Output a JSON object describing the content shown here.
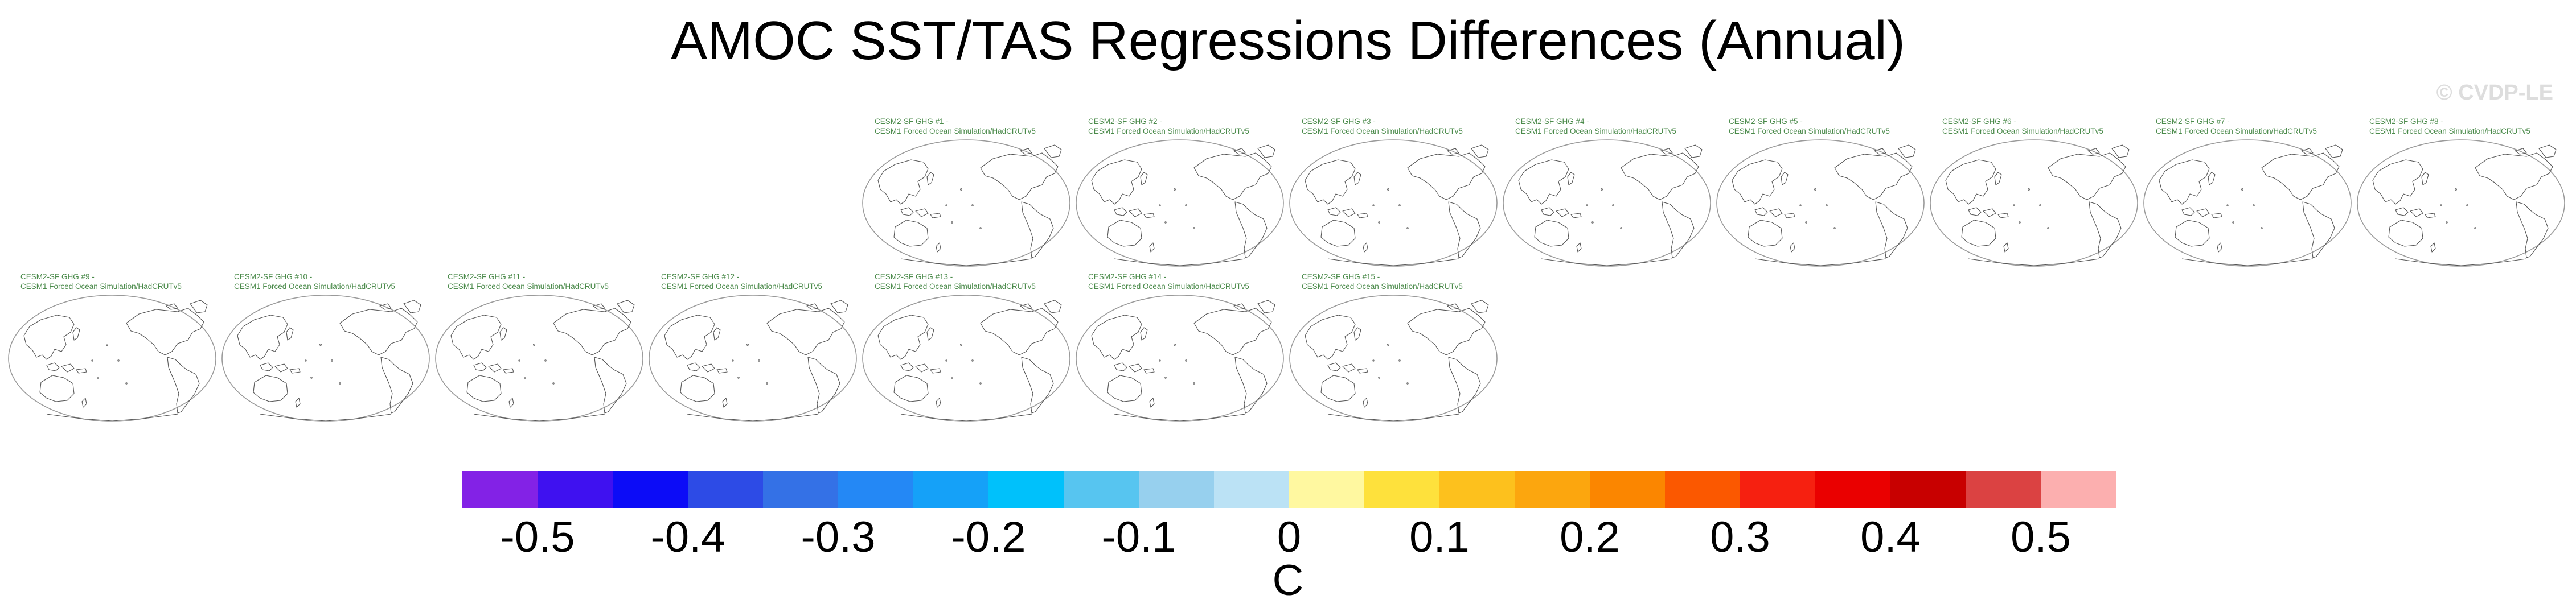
{
  "title": "AMOC SST/TAS Regressions Differences (Annual)",
  "watermark": "© CVDP-LE",
  "panels": [
    {
      "line1": "CESM2-SF GHG #1 -",
      "line2": "CESM1 Forced Ocean Simulation/HadCRUTv5"
    },
    {
      "line1": "CESM2-SF GHG #2 -",
      "line2": "CESM1 Forced Ocean Simulation/HadCRUTv5"
    },
    {
      "line1": "CESM2-SF GHG #3 -",
      "line2": "CESM1 Forced Ocean Simulation/HadCRUTv5"
    },
    {
      "line1": "CESM2-SF GHG #4 -",
      "line2": "CESM1 Forced Ocean Simulation/HadCRUTv5"
    },
    {
      "line1": "CESM2-SF GHG #5 -",
      "line2": "CESM1 Forced Ocean Simulation/HadCRUTv5"
    },
    {
      "line1": "CESM2-SF GHG #6 -",
      "line2": "CESM1 Forced Ocean Simulation/HadCRUTv5"
    },
    {
      "line1": "CESM2-SF GHG #7 -",
      "line2": "CESM1 Forced Ocean Simulation/HadCRUTv5"
    },
    {
      "line1": "CESM2-SF GHG #8 -",
      "line2": "CESM1 Forced Ocean Simulation/HadCRUTv5"
    },
    {
      "line1": "CESM2-SF GHG #9 -",
      "line2": "CESM1 Forced Ocean Simulation/HadCRUTv5"
    },
    {
      "line1": "CESM2-SF GHG #10 -",
      "line2": "CESM1 Forced Ocean Simulation/HadCRUTv5"
    },
    {
      "line1": "CESM2-SF GHG #11 -",
      "line2": "CESM1 Forced Ocean Simulation/HadCRUTv5"
    },
    {
      "line1": "CESM2-SF GHG #12 -",
      "line2": "CESM1 Forced Ocean Simulation/HadCRUTv5"
    },
    {
      "line1": "CESM2-SF GHG #13 -",
      "line2": "CESM1 Forced Ocean Simulation/HadCRUTv5"
    },
    {
      "line1": "CESM2-SF GHG #14 -",
      "line2": "CESM1 Forced Ocean Simulation/HadCRUTv5"
    },
    {
      "line1": "CESM2-SF GHG #15 -",
      "line2": "CESM1 Forced Ocean Simulation/HadCRUTv5"
    }
  ],
  "colorbar": {
    "colors": [
      "#8322e6",
      "#3f11f0",
      "#0c0cf7",
      "#2d4be6",
      "#3471e6",
      "#2488f5",
      "#15a1f8",
      "#00c1fb",
      "#57c5f0",
      "#97d0ee",
      "#bbe2f5",
      "#fff8a0",
      "#fee13c",
      "#fdc11d",
      "#fca60e",
      "#fb8600",
      "#fb5800",
      "#f62010",
      "#ea0000",
      "#c80000",
      "#db4242",
      "#fcafaf"
    ],
    "tick_labels": [
      "-0.5",
      "-0.4",
      "-0.3",
      "-0.2",
      "-0.1",
      "0",
      "0.1",
      "0.2",
      "0.3",
      "0.4",
      "0.5"
    ],
    "unit": "C"
  }
}
